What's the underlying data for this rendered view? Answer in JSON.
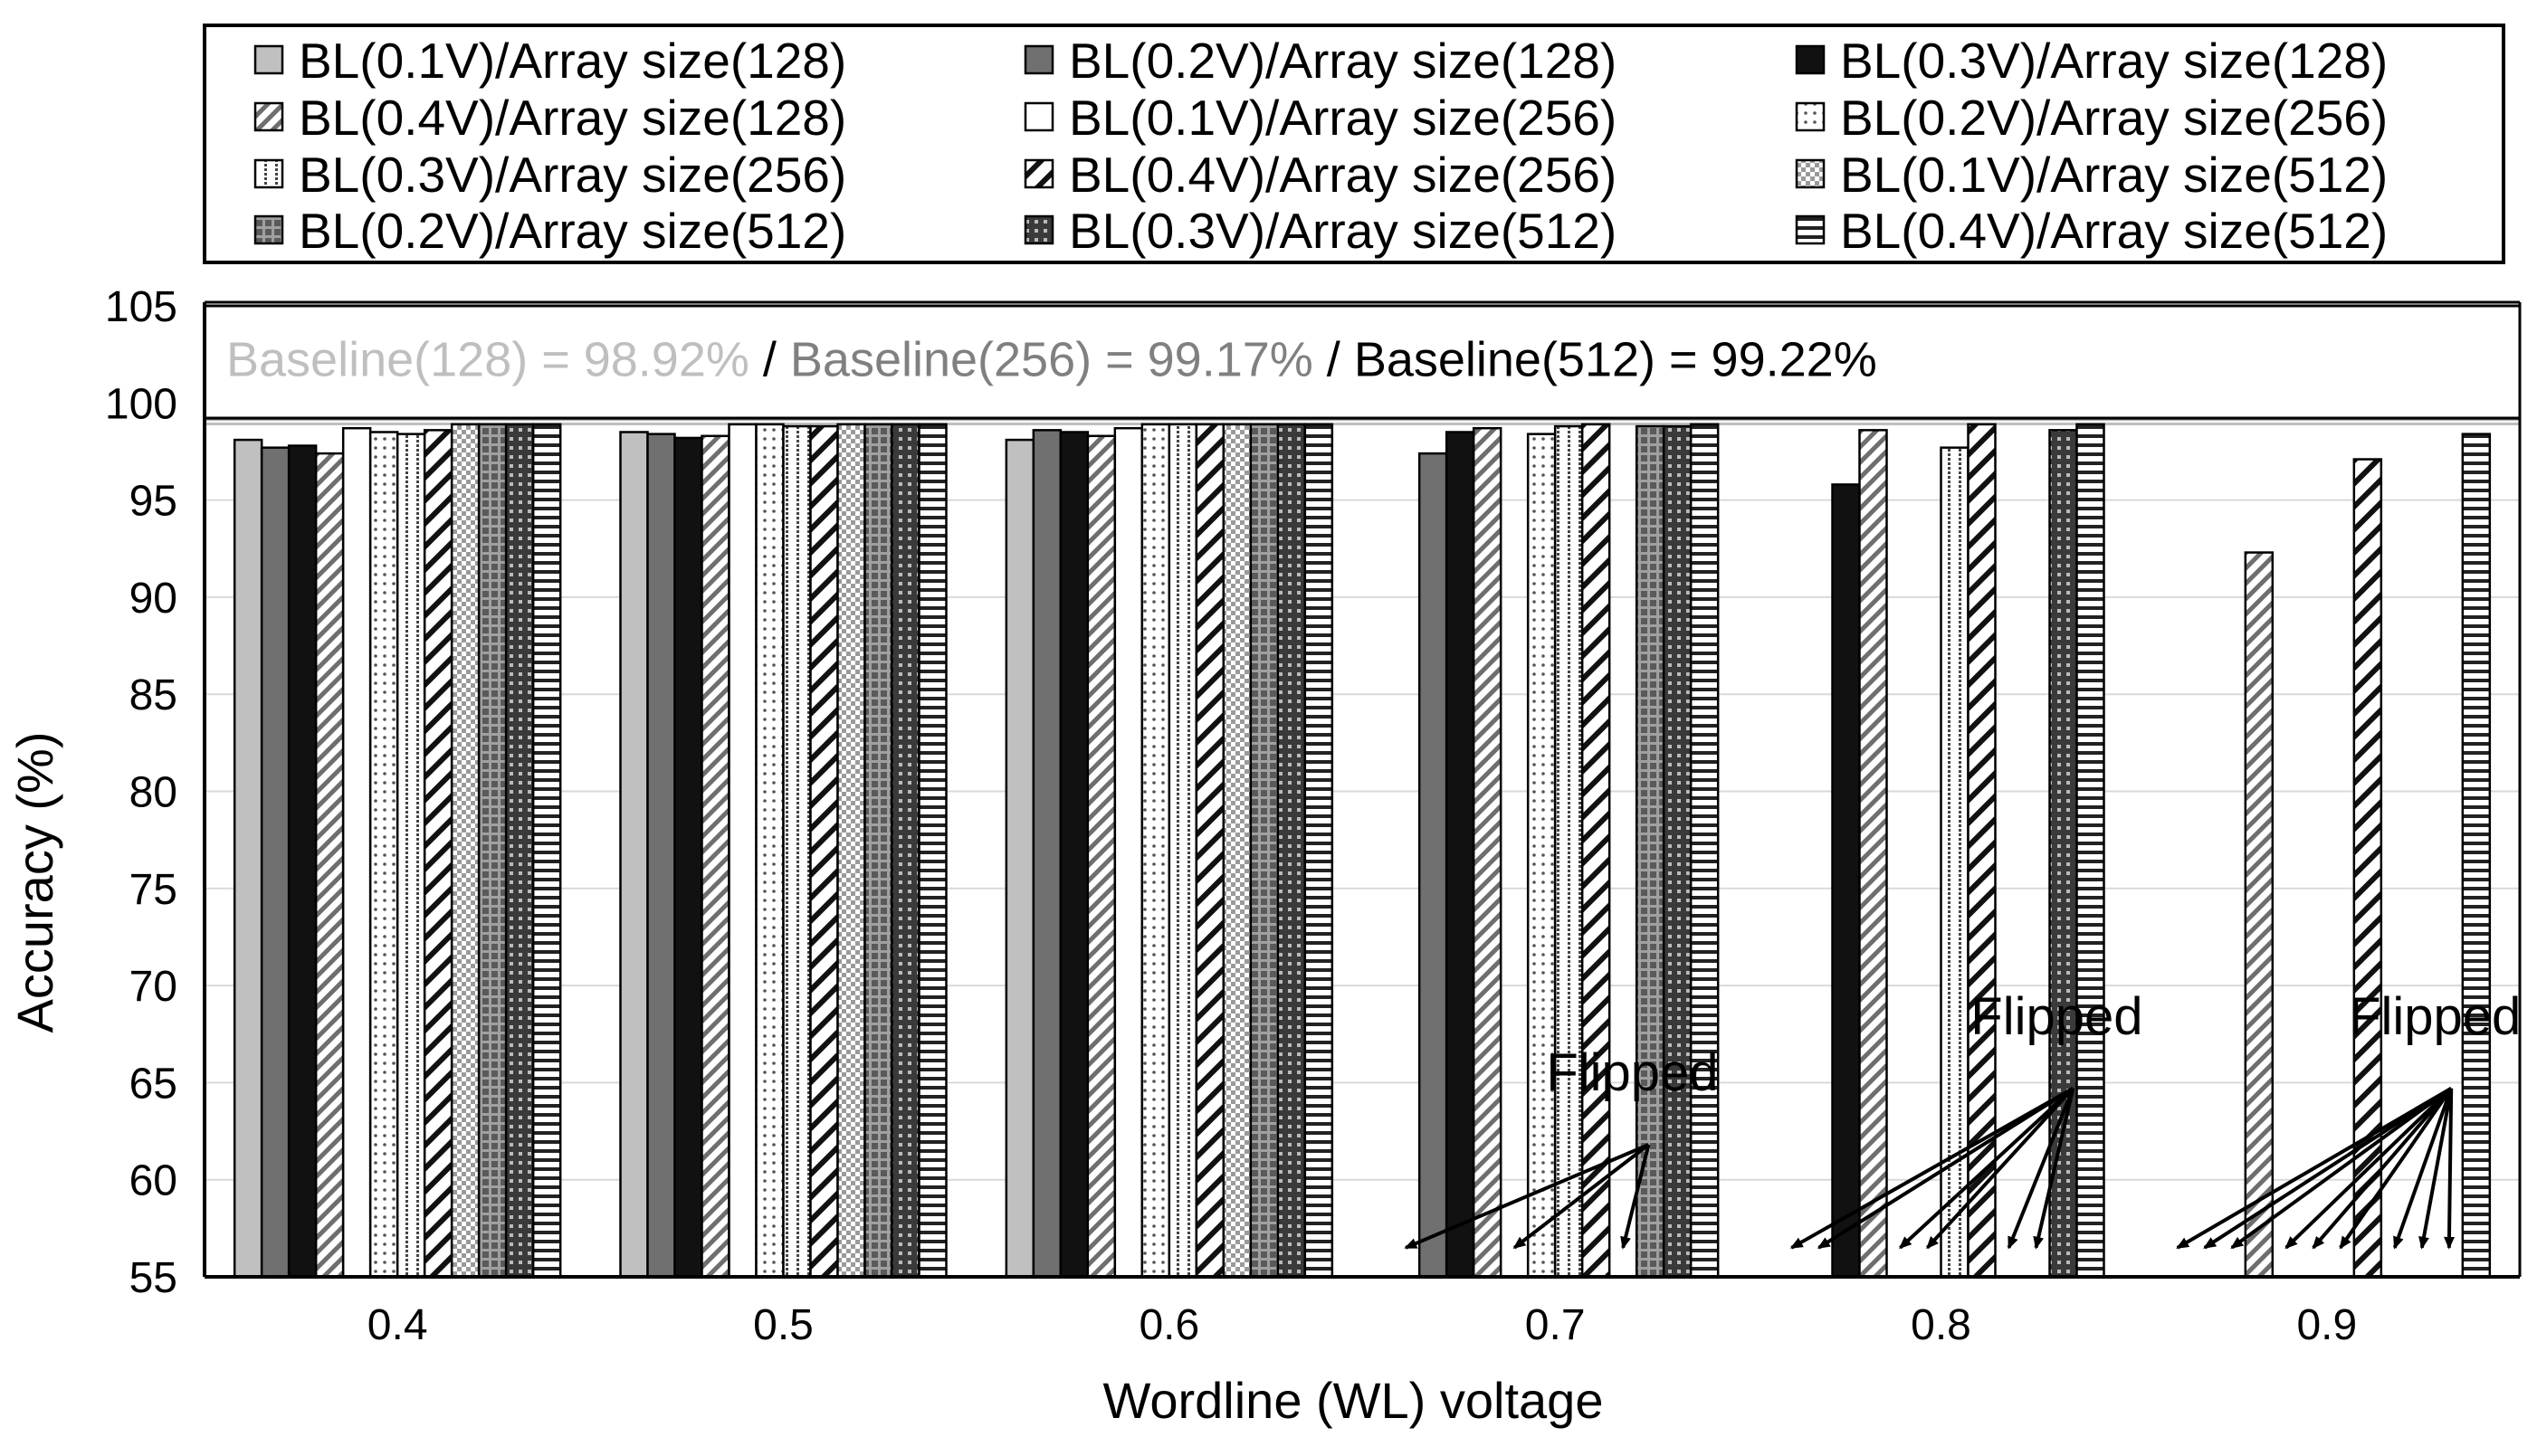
{
  "chart_data": {
    "type": "bar",
    "title": "",
    "xlabel": "Wordline (WL) voltage",
    "ylabel": "Accuracy (%)",
    "ylim": [
      55,
      105
    ],
    "yticks": [
      55,
      60,
      65,
      70,
      75,
      80,
      85,
      90,
      95,
      100,
      105
    ],
    "grid": true,
    "legend_position": "top",
    "categories": [
      "0.4",
      "0.5",
      "0.6",
      "0.7",
      "0.8",
      "0.9"
    ],
    "series": [
      {
        "name": "BL(0.1V)/Array size(128)",
        "pattern": "light",
        "values": [
          98.1,
          98.5,
          98.1,
          null,
          null,
          null
        ]
      },
      {
        "name": "BL(0.2V)/Array size(128)",
        "pattern": "dark",
        "values": [
          97.7,
          98.4,
          98.6,
          97.4,
          null,
          null
        ]
      },
      {
        "name": "BL(0.3V)/Array size(128)",
        "pattern": "black",
        "values": [
          97.8,
          98.2,
          98.5,
          98.5,
          95.8,
          null
        ]
      },
      {
        "name": "BL(0.4V)/Array size(128)",
        "pattern": "diagfine",
        "values": [
          97.4,
          98.3,
          98.3,
          98.7,
          98.6,
          92.3
        ]
      },
      {
        "name": "BL(0.1V)/Array size(256)",
        "pattern": "white",
        "values": [
          98.7,
          98.9,
          98.7,
          null,
          null,
          null
        ]
      },
      {
        "name": "BL(0.2V)/Array size(256)",
        "pattern": "dots",
        "values": [
          98.5,
          98.9,
          98.9,
          98.4,
          null,
          null
        ]
      },
      {
        "name": "BL(0.3V)/Array size(256)",
        "pattern": "vdots",
        "values": [
          98.4,
          98.8,
          98.9,
          98.8,
          97.7,
          null
        ]
      },
      {
        "name": "BL(0.4V)/Array size(256)",
        "pattern": "diagbold",
        "values": [
          98.6,
          98.8,
          98.9,
          98.9,
          98.9,
          97.1
        ]
      },
      {
        "name": "BL(0.1V)/Array size(512)",
        "pattern": "checker",
        "values": [
          98.9,
          98.9,
          98.9,
          null,
          null,
          null
        ]
      },
      {
        "name": "BL(0.2V)/Array size(512)",
        "pattern": "grid",
        "values": [
          98.9,
          98.9,
          98.9,
          98.8,
          null,
          null
        ]
      },
      {
        "name": "BL(0.3V)/Array size(512)",
        "pattern": "cross",
        "values": [
          98.9,
          98.9,
          98.9,
          98.8,
          98.6,
          null
        ]
      },
      {
        "name": "BL(0.4V)/Array size(512)",
        "pattern": "hlines",
        "values": [
          98.9,
          98.9,
          98.9,
          98.9,
          98.9,
          98.4
        ]
      }
    ],
    "baselines": [
      {
        "text": "Baseline(128) = 98.92%",
        "value": 98.92,
        "color": "#bfbfbf"
      },
      {
        "sep": " / "
      },
      {
        "text": "Baseline(256) = 99.17%",
        "value": 99.17,
        "color": "#808080"
      },
      {
        "sep": " / "
      },
      {
        "text": "Baseline(512) = 99.22%",
        "value": 99.22,
        "color": "#000000"
      }
    ],
    "annotations": [
      {
        "text": "Flipped",
        "category": "0.7"
      },
      {
        "text": "Flipped",
        "category": "0.8"
      },
      {
        "text": "Flipped",
        "category": "0.9"
      }
    ]
  }
}
